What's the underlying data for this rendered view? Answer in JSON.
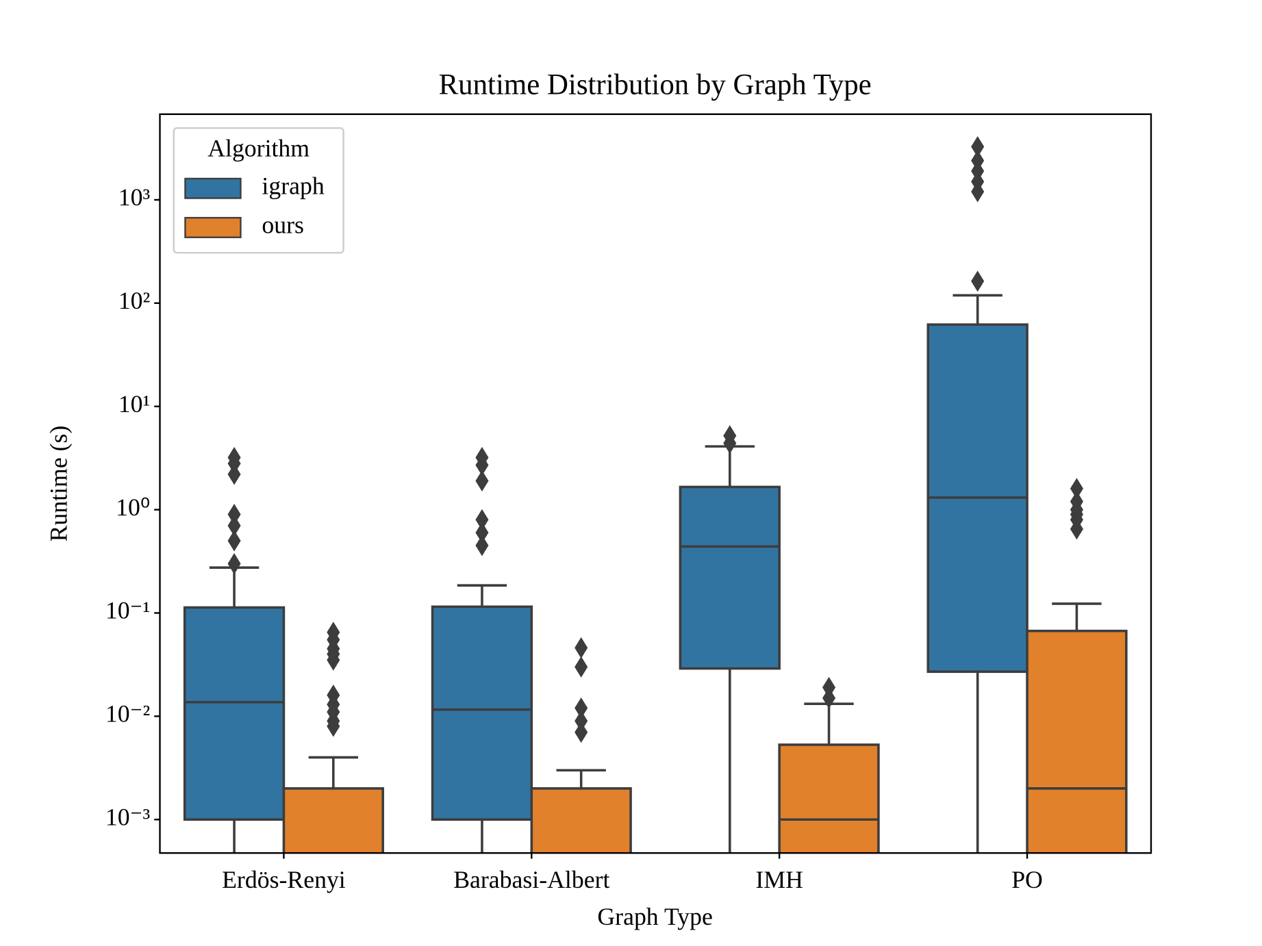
{
  "chart_data": {
    "type": "box",
    "title": "Runtime Distribution by Graph Type",
    "x_label": "Graph Type",
    "y_label": "Runtime (s)",
    "y_scale": "log",
    "categories": [
      "Erdös-Renyi",
      "Barabasi-Albert",
      "IMH",
      "PO"
    ],
    "ylim": [
      0.000474,
      6750
    ],
    "yticks": [
      {
        "value": 0.001,
        "label": "10⁻³"
      },
      {
        "value": 0.01,
        "label": "10⁻²"
      },
      {
        "value": 0.1,
        "label": "10⁻¹"
      },
      {
        "value": 1,
        "label": "10⁰"
      },
      {
        "value": 10,
        "label": "10¹"
      },
      {
        "value": 100,
        "label": "10²"
      },
      {
        "value": 1000,
        "label": "10³"
      }
    ],
    "legend": {
      "title": "Algorithm",
      "position": "upper left"
    },
    "series": [
      {
        "name": "igraph",
        "color": "#3274a1",
        "boxes": [
          {
            "whislo": 0.0003,
            "q1": 0.001,
            "med": 0.0137,
            "q3": 0.113,
            "whishi": 0.275,
            "fliers": [
              3.2,
              2.8,
              2.2,
              0.9,
              0.7,
              0.5,
              0.3
            ]
          },
          {
            "whislo": 0.0003,
            "q1": 0.001,
            "med": 0.0116,
            "q3": 0.115,
            "whishi": 0.185,
            "fliers": [
              3.2,
              2.7,
              1.9,
              0.8,
              0.6,
              0.45
            ]
          },
          {
            "whislo": 0.0003,
            "q1": 0.029,
            "med": 0.44,
            "q3": 1.66,
            "whishi": 4.1,
            "fliers": [
              5.2,
              4.4
            ]
          },
          {
            "whislo": 0.0003,
            "q1": 0.027,
            "med": 1.31,
            "q3": 62,
            "whishi": 119,
            "fliers": [
              3270,
              2400,
              1900,
              1500,
              1200,
              163
            ]
          }
        ]
      },
      {
        "name": "ours",
        "color": "#e1812c",
        "boxes": [
          {
            "whislo": 0.0002,
            "q1": 0.0003,
            "med": 0.0004,
            "q3": 0.002,
            "whishi": 0.004,
            "fliers": [
              0.065,
              0.055,
              0.045,
              0.04,
              0.035,
              0.016,
              0.013,
              0.011,
              0.009,
              0.008
            ]
          },
          {
            "whislo": 0.0002,
            "q1": 0.0003,
            "med": 0.0004,
            "q3": 0.002,
            "whishi": 0.003,
            "fliers": [
              0.046,
              0.03,
              0.012,
              0.009,
              0.007
            ]
          },
          {
            "whislo": 0.0002,
            "q1": 0.0003,
            "med": 0.001,
            "q3": 0.0053,
            "whishi": 0.0132,
            "fliers": [
              0.019,
              0.015
            ]
          },
          {
            "whislo": 0.0002,
            "q1": 0.0003,
            "med": 0.002,
            "q3": 0.067,
            "whishi": 0.123,
            "fliers": [
              1.6,
              1.2,
              1.0,
              0.9,
              0.8,
              0.65
            ]
          }
        ]
      }
    ]
  }
}
